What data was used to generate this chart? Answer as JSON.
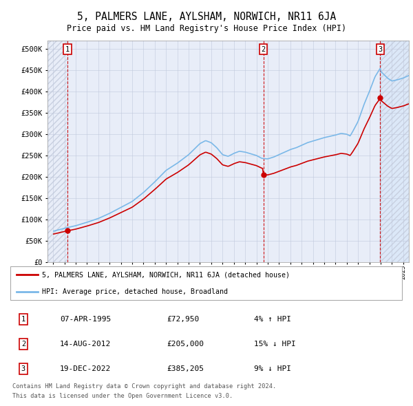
{
  "title": "5, PALMERS LANE, AYLSHAM, NORWICH, NR11 6JA",
  "subtitle": "Price paid vs. HM Land Registry's House Price Index (HPI)",
  "ylim": [
    0,
    520000
  ],
  "yticks": [
    0,
    50000,
    100000,
    150000,
    200000,
    250000,
    300000,
    350000,
    400000,
    450000,
    500000
  ],
  "ytick_labels": [
    "£0",
    "£50K",
    "£100K",
    "£150K",
    "£200K",
    "£250K",
    "£300K",
    "£350K",
    "£400K",
    "£450K",
    "£500K"
  ],
  "xlim_start": 1993.5,
  "xlim_end": 2025.5,
  "hpi_color": "#7ab8e8",
  "price_color": "#cc0000",
  "dashed_color": "#cc0000",
  "sale_dates": [
    1995.271,
    2012.621,
    2022.964
  ],
  "sale_prices": [
    72950,
    205000,
    385205
  ],
  "sale_labels": [
    "1",
    "2",
    "3"
  ],
  "legend_line1": "5, PALMERS LANE, AYLSHAM, NORWICH, NR11 6JA (detached house)",
  "legend_line2": "HPI: Average price, detached house, Broadland",
  "table_entries": [
    {
      "num": "1",
      "date": "07-APR-1995",
      "price": "£72,950",
      "pct": "4% ↑ HPI"
    },
    {
      "num": "2",
      "date": "14-AUG-2012",
      "price": "£205,000",
      "pct": "15% ↓ HPI"
    },
    {
      "num": "3",
      "date": "19-DEC-2022",
      "price": "£385,205",
      "pct": "9% ↓ HPI"
    }
  ],
  "footnote1": "Contains HM Land Registry data © Crown copyright and database right 2024.",
  "footnote2": "This data is licensed under the Open Government Licence v3.0.",
  "background_plot": "#e8edf8",
  "hatch_color": "#c8d0e0",
  "grid_color": "#c0c8dc",
  "future_shade_color": "#dce8f8",
  "sale3_shade_start": 2022.964
}
